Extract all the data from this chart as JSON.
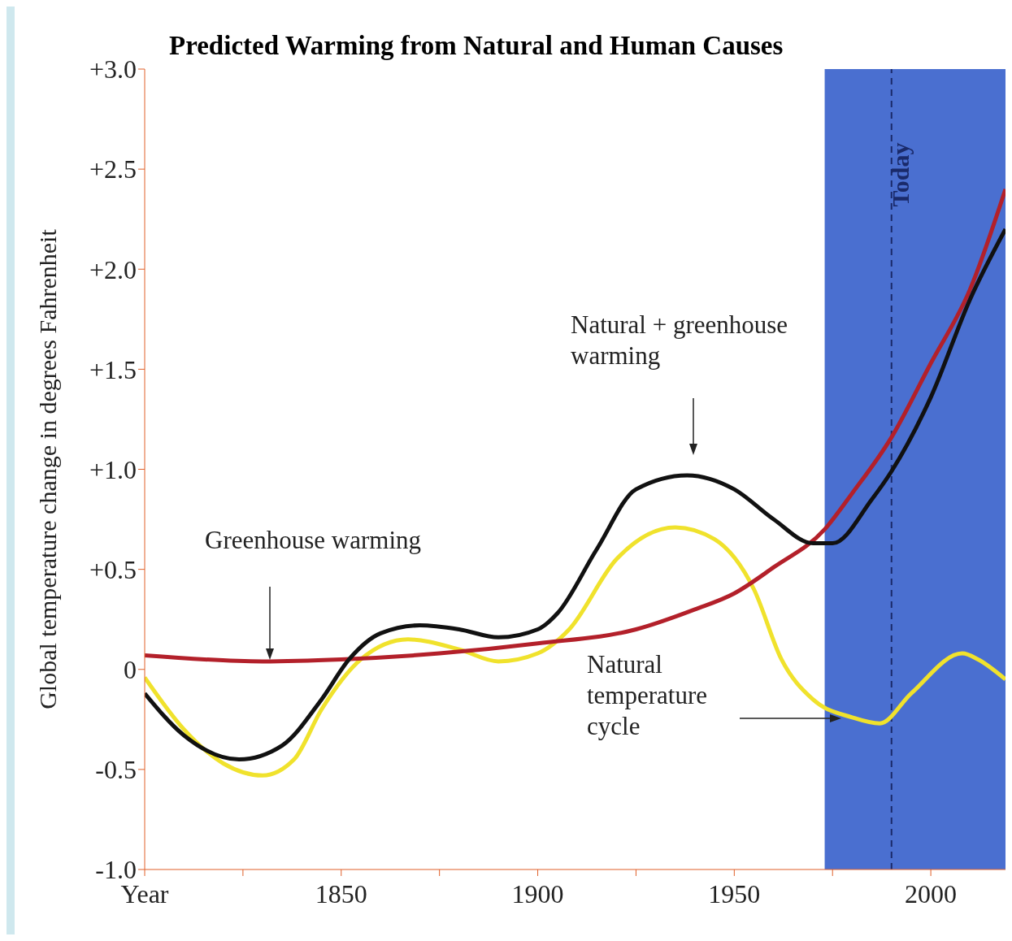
{
  "chart_data": {
    "type": "line",
    "title": "Predicted Warming from Natural and Human Causes",
    "ylabel": "Global temperature change in degrees Fahrenheit",
    "xlim": [
      1800,
      2019
    ],
    "ylim": [
      -1.0,
      3.0
    ],
    "xticks": [
      {
        "value": 1800,
        "label": "Year"
      },
      {
        "value": 1825,
        "label": null
      },
      1850,
      {
        "value": 1875,
        "label": null
      },
      1900,
      {
        "value": 1925,
        "label": null
      },
      1950,
      {
        "value": 1975,
        "label": null
      },
      2000
    ],
    "yticks": [
      {
        "value": -1.0,
        "label": "-1.0"
      },
      -0.5,
      0,
      {
        "value": 0.5,
        "label": "+0.5"
      },
      {
        "value": 1.0,
        "label": "+1.0"
      },
      {
        "value": 1.5,
        "label": "+1.5"
      },
      {
        "value": 2.0,
        "label": "+2.0"
      },
      {
        "value": 2.5,
        "label": "+2.5"
      },
      {
        "value": 3.0,
        "label": "+3.0"
      }
    ],
    "marker": "none",
    "series": [
      {
        "color": "#f0e22c",
        "x": [
          1800,
          1810,
          1820,
          1830,
          1838,
          1845,
          1855,
          1867,
          1880,
          1890,
          1900,
          1908,
          1920,
          1935,
          1945,
          1955,
          1962,
          1970,
          1980,
          1987,
          1995,
          2008,
          2012,
          2019
        ],
        "values": [
          -0.04,
          -0.3,
          -0.47,
          -0.53,
          -0.45,
          -0.2,
          0.05,
          0.15,
          0.1,
          0.04,
          0.08,
          0.2,
          0.55,
          0.71,
          0.65,
          0.4,
          0.05,
          -0.15,
          -0.24,
          -0.27,
          -0.12,
          0.08,
          0.05,
          -0.05
        ]
      },
      {
        "color": "#b3202a",
        "x": [
          1800,
          1830,
          1850,
          1875,
          1900,
          1925,
          1940,
          1950,
          1960,
          1973,
          1980,
          1990,
          2000,
          2010,
          2019
        ],
        "values": [
          0.07,
          0.04,
          0.05,
          0.08,
          0.13,
          0.2,
          0.3,
          0.38,
          0.51,
          0.7,
          0.88,
          1.16,
          1.53,
          1.9,
          2.4
        ]
      },
      {
        "color": "#111111",
        "x": [
          1800,
          1810,
          1824,
          1835,
          1845,
          1852,
          1860,
          1870,
          1880,
          1890,
          1900,
          1905,
          1915,
          1925,
          1938,
          1950,
          1960,
          1970,
          1975,
          1985,
          1990,
          2000,
          2010,
          2019
        ],
        "values": [
          -0.12,
          -0.33,
          -0.45,
          -0.38,
          -0.15,
          0.05,
          0.18,
          0.22,
          0.2,
          0.16,
          0.2,
          0.28,
          0.6,
          0.9,
          0.97,
          0.9,
          0.75,
          0.63,
          0.63,
          0.85,
          0.99,
          1.36,
          1.85,
          2.2
        ]
      }
    ],
    "bands": [
      {
        "axis": "x",
        "from": 1973,
        "to": 2019,
        "color": "#4a6fd0"
      }
    ],
    "ref_lines": [
      {
        "axis": "x",
        "value": 1990,
        "label": "Today",
        "color": "#1a2a6a",
        "line_style": "dashed"
      }
    ],
    "annotations": [
      "Greenhouse warming",
      "Natural + greenhouse warming",
      "Natural temperature cycle"
    ]
  }
}
